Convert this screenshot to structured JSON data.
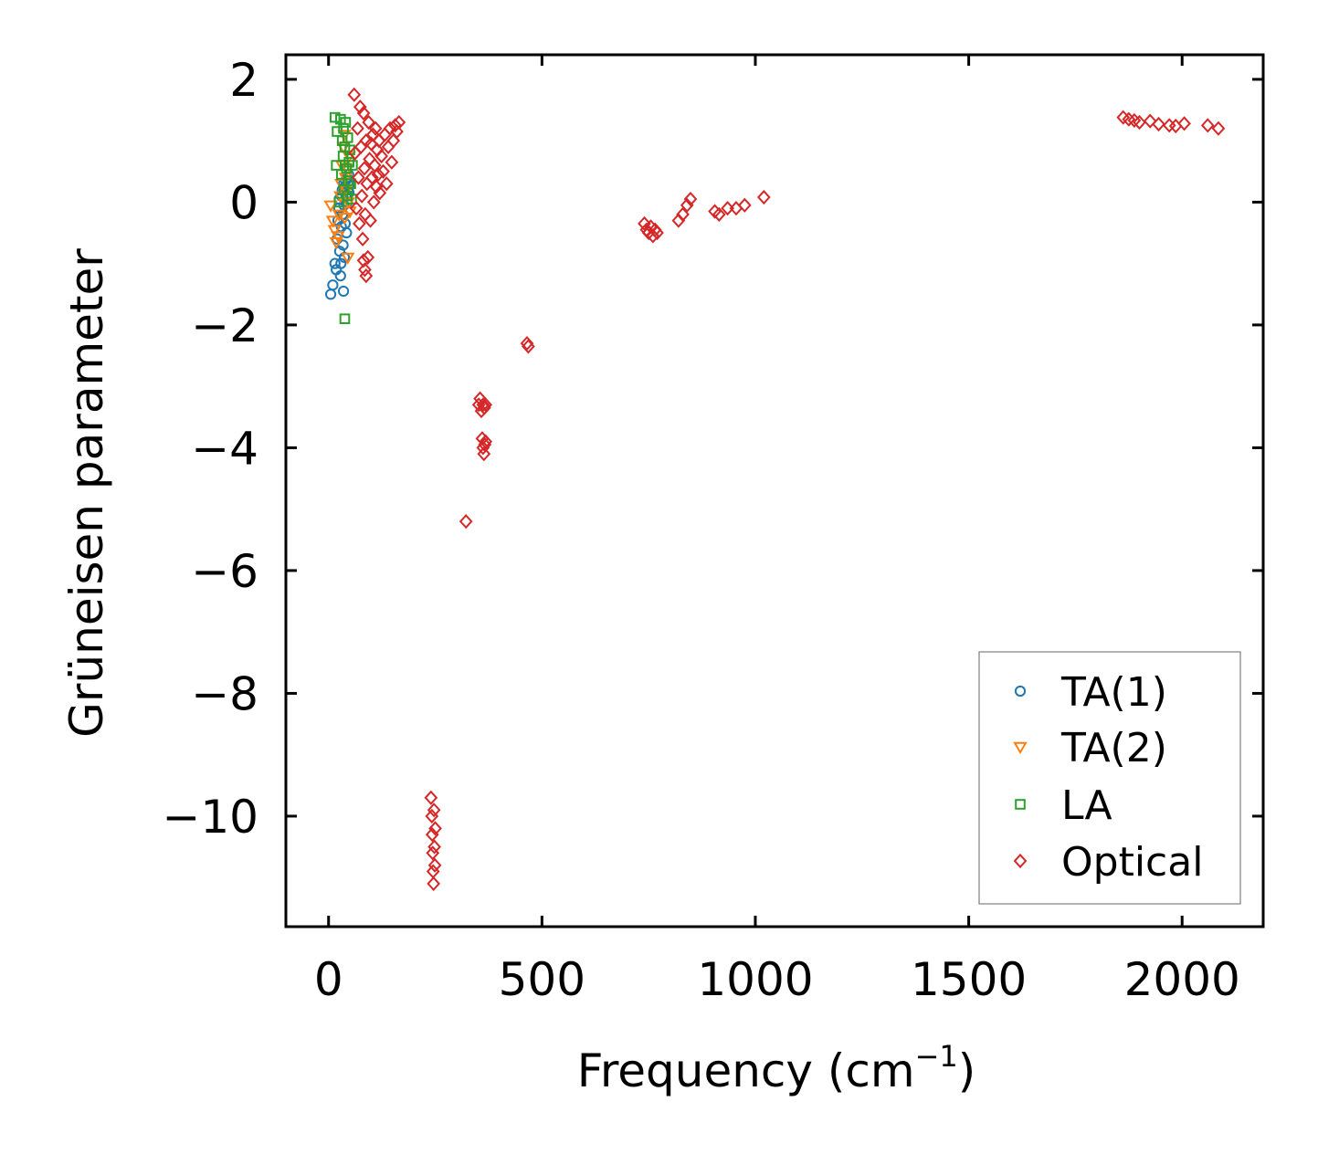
{
  "chart_data": {
    "type": "scatter",
    "title": "",
    "xlabel": "Frequency (cm",
    "xlabel_sup": "−1",
    "xlabel_close": ")",
    "ylabel": "Grüneisen parameter",
    "xlim": [
      -100,
      2190
    ],
    "ylim": [
      -11.8,
      2.4
    ],
    "xticks": [
      0,
      500,
      1000,
      1500,
      2000
    ],
    "xtick_labels": [
      "0",
      "500",
      "1000",
      "1500",
      "2000"
    ],
    "yticks": [
      2,
      0,
      -2,
      -4,
      -6,
      -8,
      -10
    ],
    "ytick_labels": [
      "2",
      "0",
      "−2",
      "−4",
      "−6",
      "−8",
      "−10"
    ],
    "legend_position": "lower right",
    "grid": false,
    "series": [
      {
        "name": "TA(1)",
        "marker": "circle",
        "color": "#1f77b4",
        "points": [
          [
            5,
            -1.5
          ],
          [
            10,
            -1.35
          ],
          [
            15,
            -1.0
          ],
          [
            18,
            -1.1
          ],
          [
            20,
            -0.6
          ],
          [
            22,
            -0.3
          ],
          [
            24,
            -0.1
          ],
          [
            25,
            0.05
          ],
          [
            26,
            -0.8
          ],
          [
            28,
            -1.2
          ],
          [
            29,
            -1.0
          ],
          [
            30,
            -0.4
          ],
          [
            30,
            0.1
          ],
          [
            32,
            0.2
          ],
          [
            33,
            -0.2
          ],
          [
            34,
            -0.7
          ],
          [
            35,
            -1.45
          ],
          [
            35,
            0.3
          ],
          [
            36,
            -0.05
          ],
          [
            37,
            -0.9
          ],
          [
            38,
            0.25
          ],
          [
            39,
            -0.35
          ],
          [
            40,
            0.35
          ],
          [
            41,
            0.1
          ],
          [
            42,
            -0.5
          ],
          [
            43,
            0.4
          ],
          [
            44,
            0.0
          ],
          [
            45,
            0.3
          ],
          [
            46,
            0.2
          ],
          [
            47,
            0.45
          ],
          [
            48,
            0.15
          ],
          [
            50,
            0.3
          ]
        ]
      },
      {
        "name": "TA(2)",
        "marker": "triangle-down",
        "color": "#ff7f0e",
        "points": [
          [
            5,
            -0.05
          ],
          [
            10,
            -0.3
          ],
          [
            14,
            -0.45
          ],
          [
            18,
            -0.65
          ],
          [
            22,
            -0.55
          ],
          [
            25,
            -0.2
          ],
          [
            28,
            0.1
          ],
          [
            30,
            0.3
          ],
          [
            32,
            0.6
          ],
          [
            35,
            0.9
          ],
          [
            37,
            1.1
          ],
          [
            38,
            -0.25
          ],
          [
            40,
            0.4
          ],
          [
            42,
            0.2
          ],
          [
            44,
            0.55
          ],
          [
            45,
            -0.9
          ],
          [
            46,
            0.0
          ],
          [
            48,
            0.75
          ],
          [
            50,
            -0.15
          ]
        ]
      },
      {
        "name": "LA",
        "marker": "square",
        "color": "#2ca02c",
        "points": [
          [
            15,
            1.38
          ],
          [
            18,
            0.6
          ],
          [
            20,
            1.15
          ],
          [
            25,
            0.0
          ],
          [
            28,
            1.35
          ],
          [
            30,
            0.45
          ],
          [
            32,
            1.0
          ],
          [
            34,
            0.75
          ],
          [
            35,
            1.2
          ],
          [
            36,
            0.2
          ],
          [
            38,
            0.9
          ],
          [
            38,
            -1.9
          ],
          [
            40,
            1.3
          ],
          [
            42,
            0.55
          ],
          [
            44,
            0.1
          ],
          [
            45,
            1.05
          ],
          [
            46,
            0.35
          ],
          [
            48,
            0.65
          ],
          [
            50,
            0.85
          ],
          [
            52,
            0.3
          ],
          [
            54,
            0.05
          ],
          [
            56,
            0.6
          ]
        ]
      },
      {
        "name": "Optical",
        "marker": "diamond",
        "color": "#d62728",
        "points": [
          [
            60,
            1.75
          ],
          [
            62,
            0.8
          ],
          [
            65,
            -0.1
          ],
          [
            68,
            1.2
          ],
          [
            70,
            0.4
          ],
          [
            72,
            -0.35
          ],
          [
            74,
            1.55
          ],
          [
            76,
            0.9
          ],
          [
            78,
            0.1
          ],
          [
            80,
            -0.6
          ],
          [
            82,
            1.45
          ],
          [
            84,
            0.55
          ],
          [
            86,
            -0.2
          ],
          [
            88,
            1.0
          ],
          [
            90,
            0.3
          ],
          [
            92,
            -0.9
          ],
          [
            94,
            1.3
          ],
          [
            96,
            0.7
          ],
          [
            98,
            -0.3
          ],
          [
            100,
            0.95
          ],
          [
            102,
            0.4
          ],
          [
            104,
            1.1
          ],
          [
            106,
            0.0
          ],
          [
            108,
            0.6
          ],
          [
            110,
            1.2
          ],
          [
            112,
            0.25
          ],
          [
            114,
            0.85
          ],
          [
            116,
            0.45
          ],
          [
            118,
            1.0
          ],
          [
            120,
            0.15
          ],
          [
            124,
            0.75
          ],
          [
            128,
            0.5
          ],
          [
            132,
            1.1
          ],
          [
            136,
            0.3
          ],
          [
            140,
            0.9
          ],
          [
            144,
            1.2
          ],
          [
            148,
            0.65
          ],
          [
            152,
            1.0
          ],
          [
            156,
            1.25
          ],
          [
            160,
            1.15
          ],
          [
            165,
            1.3
          ],
          [
            85,
            -1.1
          ],
          [
            88,
            -1.2
          ],
          [
            82,
            -0.95
          ],
          [
            240,
            -9.7
          ],
          [
            242,
            -10.0
          ],
          [
            243,
            -10.3
          ],
          [
            244,
            -10.6
          ],
          [
            245,
            -10.9
          ],
          [
            246,
            -11.1
          ],
          [
            247,
            -9.9
          ],
          [
            248,
            -10.5
          ],
          [
            249,
            -10.8
          ],
          [
            250,
            -10.2
          ],
          [
            322,
            -5.2
          ],
          [
            352,
            -3.3
          ],
          [
            355,
            -3.2
          ],
          [
            358,
            -3.4
          ],
          [
            362,
            -3.3
          ],
          [
            365,
            -3.35
          ],
          [
            368,
            -3.3
          ],
          [
            360,
            -3.85
          ],
          [
            362,
            -4.0
          ],
          [
            364,
            -4.1
          ],
          [
            366,
            -3.95
          ],
          [
            368,
            -3.9
          ],
          [
            465,
            -2.3
          ],
          [
            468,
            -2.35
          ],
          [
            740,
            -0.35
          ],
          [
            745,
            -0.45
          ],
          [
            750,
            -0.5
          ],
          [
            755,
            -0.4
          ],
          [
            760,
            -0.55
          ],
          [
            765,
            -0.45
          ],
          [
            770,
            -0.5
          ],
          [
            820,
            -0.3
          ],
          [
            830,
            -0.2
          ],
          [
            840,
            -0.05
          ],
          [
            848,
            0.05
          ],
          [
            905,
            -0.15
          ],
          [
            915,
            -0.2
          ],
          [
            935,
            -0.1
          ],
          [
            955,
            -0.1
          ],
          [
            975,
            -0.05
          ],
          [
            1020,
            0.08
          ],
          [
            1862,
            1.38
          ],
          [
            1875,
            1.35
          ],
          [
            1888,
            1.33
          ],
          [
            1900,
            1.3
          ],
          [
            1925,
            1.32
          ],
          [
            1945,
            1.27
          ],
          [
            1970,
            1.25
          ],
          [
            1985,
            1.24
          ],
          [
            2005,
            1.28
          ],
          [
            2060,
            1.25
          ],
          [
            2085,
            1.2
          ]
        ]
      }
    ]
  }
}
